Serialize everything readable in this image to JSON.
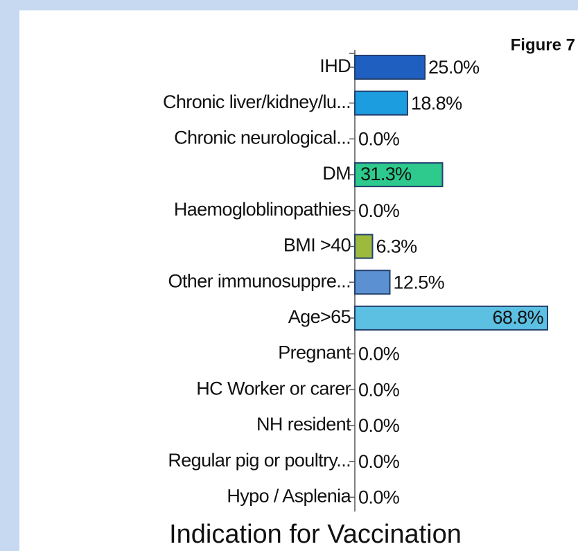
{
  "chart_data": {
    "type": "hbar",
    "title": "Indication for Vaccination",
    "annotation": "Figure 7",
    "categories": [
      "IHD",
      "Chronic liver/kidney/lu...",
      "Chronic neurological...",
      "DM",
      "Haemogloblinopathies",
      "BMI >40",
      "Other immunosuppre...",
      "Age>65",
      "Pregnant",
      "HC Worker or carer",
      "NH resident",
      "Regular pig or poultry...",
      "Hypo / Asplenia"
    ],
    "values": [
      25.0,
      18.8,
      0,
      31.3,
      0,
      6.3,
      12.5,
      68.8,
      0,
      0,
      0,
      0,
      0
    ],
    "value_labels": [
      "25.0%",
      "18.8%",
      "0.0%",
      "31.3%",
      "0.0%",
      "6.3%",
      "12.5%",
      "68.8%",
      "0.0%",
      "0.0%",
      "0.0%",
      "0.0%",
      "0.0%"
    ],
    "colors": [
      "#1f5fc0",
      "#1b9de0",
      null,
      "#2ec98c",
      null,
      "#9cba3c",
      "#5b91d2",
      "#5cc0e2",
      null,
      null,
      null,
      null,
      null
    ]
  }
}
